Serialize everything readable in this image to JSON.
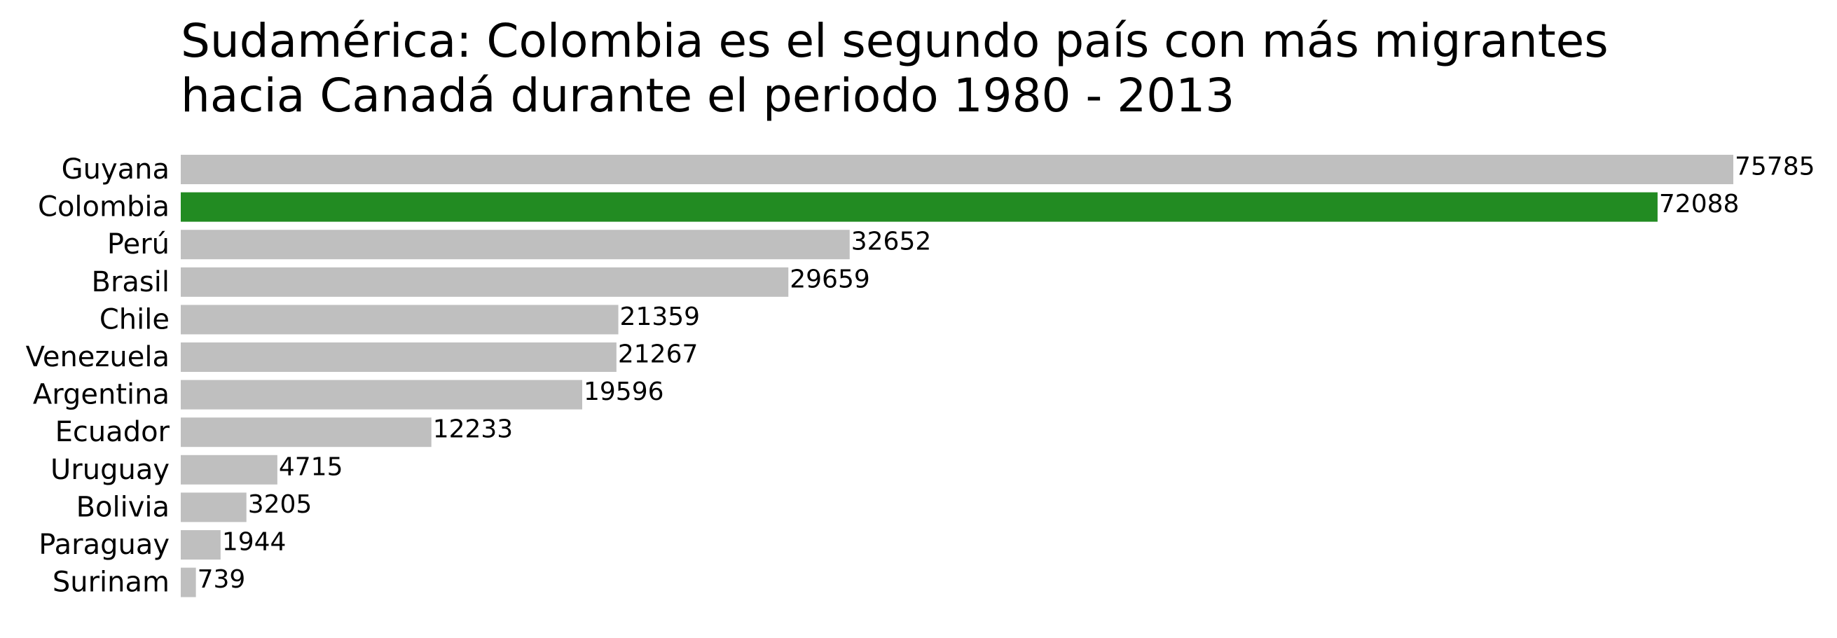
{
  "chart_data": {
    "type": "bar",
    "orientation": "horizontal",
    "title": "Sudamérica: Colombia es el segundo país con más migrantes\nhacia Canadá durante el periodo 1980 - 2013",
    "xlabel": "",
    "ylabel": "",
    "categories": [
      "Guyana",
      "Colombia",
      "Perú",
      "Brasil",
      "Chile",
      "Venezuela",
      "Argentina",
      "Ecuador",
      "Uruguay",
      "Bolivia",
      "Paraguay",
      "Surinam"
    ],
    "values": [
      75785,
      72088,
      32652,
      29659,
      21359,
      21267,
      19596,
      12233,
      4715,
      3205,
      1944,
      739
    ],
    "xlim": [
      0,
      75785
    ],
    "grid": false,
    "axes_visible": false,
    "highlight_category": "Colombia",
    "colors": {
      "default_bar": "#bfbfbf",
      "highlight_bar": "#228b22",
      "text": "#000000"
    }
  }
}
